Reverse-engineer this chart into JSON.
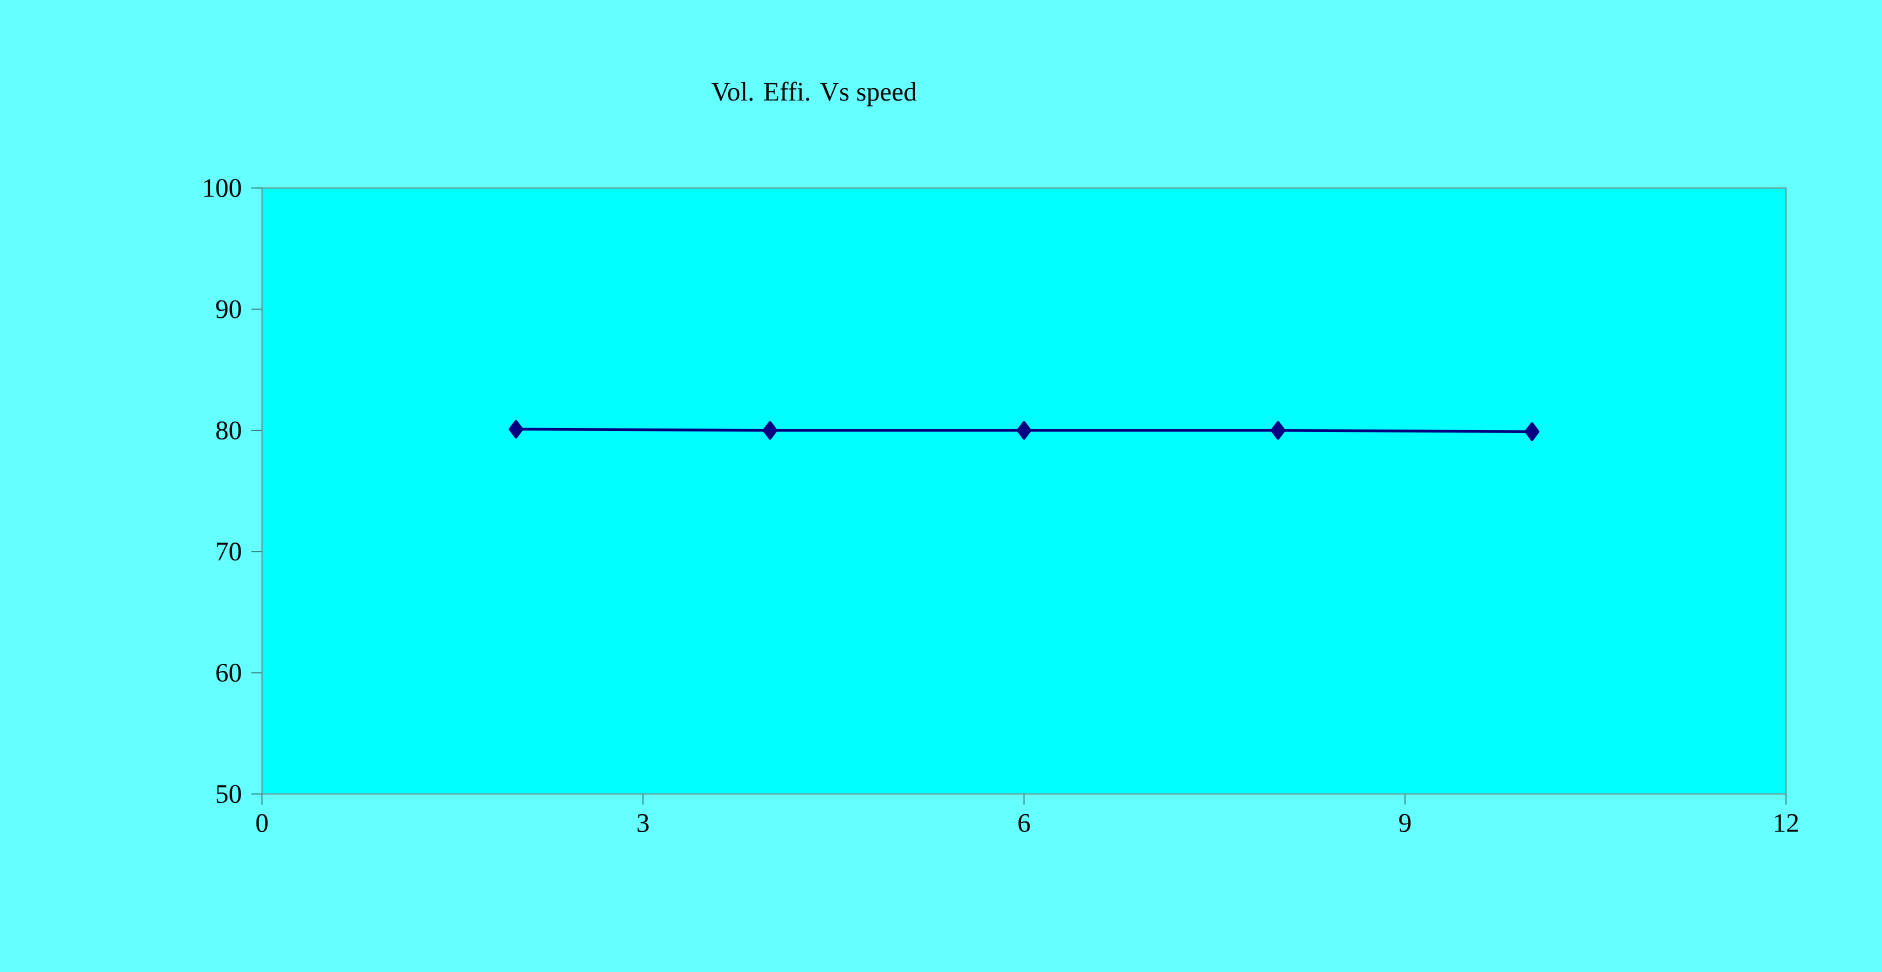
{
  "chart_data": {
    "type": "line",
    "title": "Vol. Effi. Vs speed",
    "x": [
      2,
      4,
      6,
      8,
      10
    ],
    "series": [
      {
        "color": "#000080",
        "values": [
          80.1,
          80,
          80,
          80,
          79.9
        ]
      }
    ],
    "xlim": [
      0,
      12
    ],
    "xticks": [
      0,
      3,
      6,
      9,
      12
    ],
    "ylim": [
      50,
      100
    ],
    "yticks": [
      50,
      60,
      70,
      80,
      90,
      100
    ],
    "marker": "diamond",
    "line_style": "solid",
    "grid": false
  }
}
